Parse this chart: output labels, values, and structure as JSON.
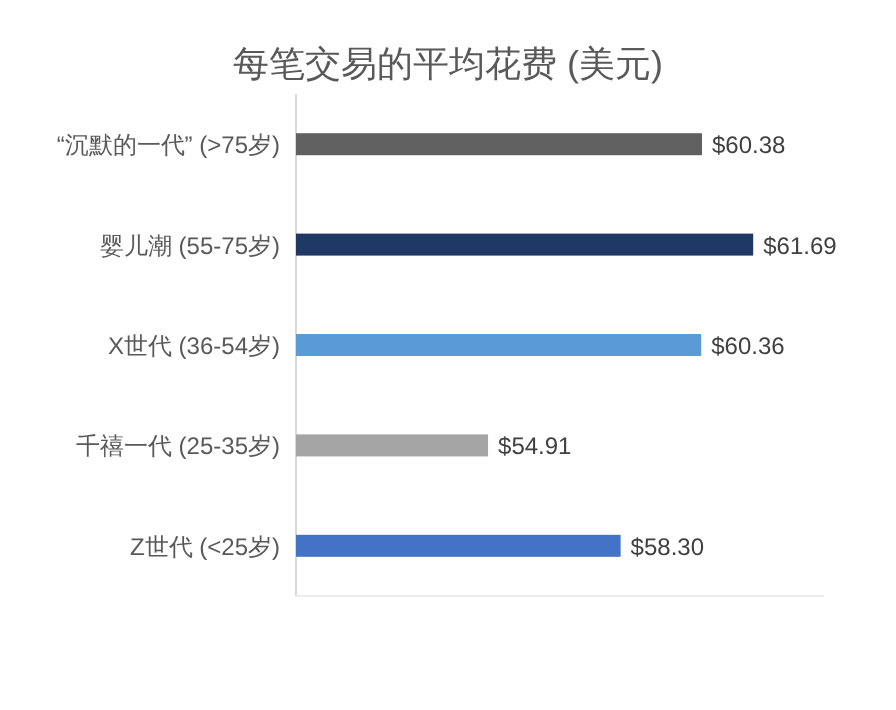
{
  "chart_data": {
    "type": "bar",
    "orientation": "horizontal",
    "title": "每笔交易的平均花费 (美元)",
    "categories": [
      "“沉默的一代” (>75岁)",
      "婴儿潮 (55-75岁)",
      "X世代 (36-54岁)",
      "千禧一代 (25-35岁)",
      "Z世代 (<25岁)"
    ],
    "values": [
      60.38,
      61.69,
      60.36,
      54.91,
      58.3
    ],
    "colors": [
      "#606060",
      "#1f3864",
      "#5b9bd5",
      "#a5a5a5",
      "#4472c4"
    ],
    "value_labels": [
      "$60.38",
      "$61.69",
      "$60.36",
      "$54.91",
      "$58.30"
    ],
    "xlim": [
      50,
      63.5
    ],
    "tick_labels": "y"
  }
}
